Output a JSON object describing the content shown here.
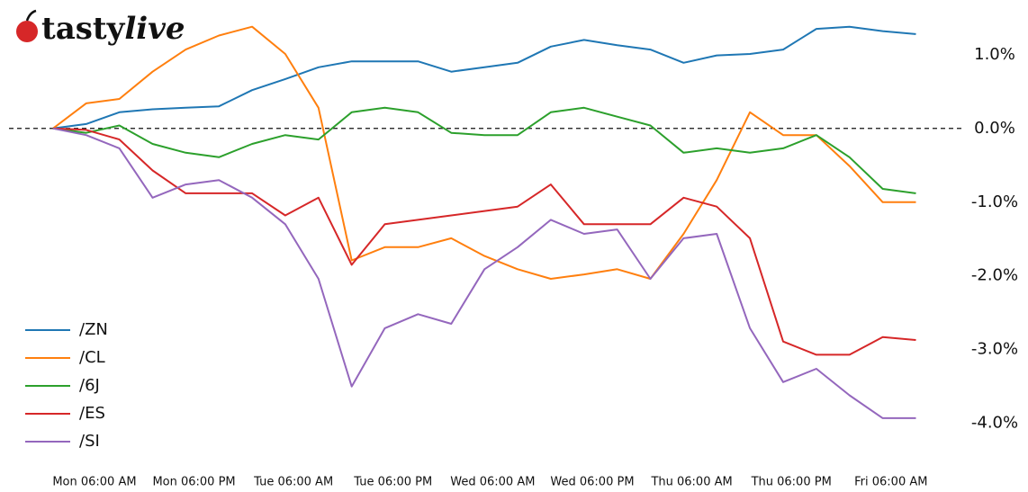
{
  "logo": {
    "bold": "tasty",
    "italic": "live"
  },
  "chart_data": {
    "type": "line",
    "x": [
      -5,
      -1,
      3,
      7,
      11,
      15,
      19,
      23,
      27,
      31,
      35,
      39,
      43,
      47,
      51,
      55,
      59,
      63,
      67,
      71,
      75,
      79,
      83,
      87,
      91,
      95,
      99
    ],
    "xlim": [
      -10.3,
      104.7
    ],
    "xticks": [
      {
        "value": 0,
        "label": "Mon 06:00 AM"
      },
      {
        "value": 12,
        "label": "Mon 06:00 PM"
      },
      {
        "value": 24,
        "label": "Tue 06:00 AM"
      },
      {
        "value": 36,
        "label": "Tue 06:00 PM"
      },
      {
        "value": 48,
        "label": "Wed 06:00 AM"
      },
      {
        "value": 60,
        "label": "Wed 06:00 PM"
      },
      {
        "value": 72,
        "label": "Thu 06:00 AM"
      },
      {
        "value": 84,
        "label": "Thu 06:00 PM"
      },
      {
        "value": 96,
        "label": "Fri 06:00 AM"
      }
    ],
    "ylim": [
      -4.48,
      1.62
    ],
    "yticks": [
      {
        "value": 1,
        "label": "1.0%"
      },
      {
        "value": 0,
        "label": "0.0%"
      },
      {
        "value": -1,
        "label": "-1.0%"
      },
      {
        "value": -2,
        "label": "-2.0%"
      },
      {
        "value": -3,
        "label": "-3.0%"
      },
      {
        "value": -4,
        "label": "-4.0%"
      }
    ],
    "reference_line": 0,
    "legend": "lower left",
    "series": [
      {
        "name": "/ZN",
        "color": "#1f77b4",
        "values": [
          0,
          0.06,
          0.22,
          0.26,
          0.28,
          0.3,
          0.52,
          0.67,
          0.83,
          0.91,
          0.91,
          0.91,
          0.77,
          0.83,
          0.89,
          1.11,
          1.2,
          1.13,
          1.07,
          0.89,
          0.99,
          1.01,
          1.07,
          1.35,
          1.38,
          1.32,
          1.28
        ]
      },
      {
        "name": "/CL",
        "color": "#ff7f0e",
        "values": [
          0,
          0.34,
          0.4,
          0.77,
          1.07,
          1.26,
          1.38,
          1.01,
          0.28,
          -1.79,
          -1.61,
          -1.61,
          -1.49,
          -1.73,
          -1.91,
          -2.04,
          -1.98,
          -1.91,
          -2.04,
          -1.43,
          -0.7,
          0.22,
          -0.09,
          -0.09,
          -0.51,
          -1.0,
          -1.0
        ]
      },
      {
        "name": "/6J",
        "color": "#2ca02c",
        "values": [
          0,
          -0.06,
          0.04,
          -0.21,
          -0.33,
          -0.39,
          -0.21,
          -0.09,
          -0.15,
          0.22,
          0.28,
          0.22,
          -0.06,
          -0.09,
          -0.09,
          0.22,
          0.28,
          0.16,
          0.04,
          -0.33,
          -0.27,
          -0.33,
          -0.27,
          -0.09,
          -0.39,
          -0.82,
          -0.88
        ]
      },
      {
        "name": "/ES",
        "color": "#d62728",
        "values": [
          0,
          -0.02,
          -0.15,
          -0.57,
          -0.88,
          -0.88,
          -0.88,
          -1.18,
          -0.94,
          -1.85,
          -1.3,
          -1.24,
          -1.18,
          -1.12,
          -1.06,
          -0.76,
          -1.3,
          -1.3,
          -1.3,
          -0.94,
          -1.06,
          -1.49,
          -2.89,
          -3.07,
          -3.07,
          -2.83,
          -2.87
        ]
      },
      {
        "name": "/SI",
        "color": "#9467bd",
        "values": [
          0,
          -0.09,
          -0.27,
          -0.94,
          -0.76,
          -0.7,
          -0.94,
          -1.3,
          -2.04,
          -3.5,
          -2.71,
          -2.52,
          -2.65,
          -1.91,
          -1.61,
          -1.24,
          -1.43,
          -1.37,
          -2.04,
          -1.49,
          -1.43,
          -2.71,
          -3.44,
          -3.26,
          -3.62,
          -3.93,
          -3.93
        ]
      }
    ]
  }
}
